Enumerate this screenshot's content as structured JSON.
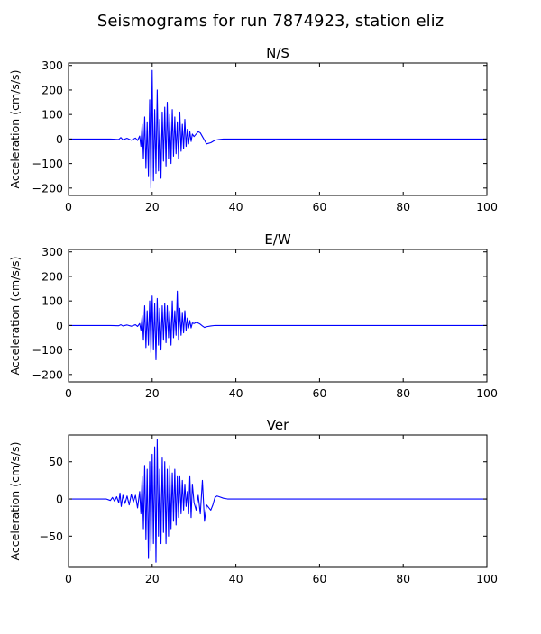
{
  "figure": {
    "title": "Seismograms for run 7874923, station eliz"
  },
  "style": {
    "line_color": "#0000ff",
    "axes_color": "#000000",
    "background": "#ffffff"
  },
  "chart_data": [
    {
      "type": "line",
      "title": "N/S",
      "xlabel": "",
      "ylabel": "Acceleration (cm/s/s)",
      "xlim": [
        0,
        100
      ],
      "ylim": [
        -230,
        310
      ],
      "xticks": [
        0,
        20,
        40,
        60,
        80,
        100
      ],
      "yticks": [
        -200,
        -100,
        0,
        100,
        200,
        300
      ],
      "grid": false,
      "series": [
        {
          "x": [
            0,
            10,
            12,
            12.5,
            13,
            14,
            15,
            16,
            16.5,
            17,
            17.3,
            17.6,
            17.9,
            18.2,
            18.5,
            18.8,
            19.1,
            19.4,
            19.7,
            20,
            20.3,
            20.6,
            20.9,
            21.2,
            21.5,
            21.8,
            22.1,
            22.4,
            22.7,
            23,
            23.3,
            23.6,
            23.9,
            24.2,
            24.5,
            24.8,
            25.1,
            25.4,
            25.7,
            26,
            26.3,
            26.6,
            26.9,
            27.2,
            27.5,
            27.8,
            28.1,
            28.4,
            28.7,
            29,
            29.3,
            29.6,
            30,
            30.5,
            31,
            31.5,
            32,
            32.5,
            33,
            34,
            35,
            36,
            37,
            38,
            40,
            50,
            60,
            70,
            80,
            90,
            100
          ],
          "y": [
            0,
            0,
            -2,
            6,
            -3,
            3,
            -5,
            4,
            -6,
            12,
            -30,
            60,
            -80,
            90,
            -120,
            70,
            -150,
            160,
            -200,
            280,
            -170,
            120,
            -140,
            200,
            -130,
            80,
            -160,
            110,
            -90,
            130,
            -110,
            150,
            -80,
            100,
            -100,
            120,
            -70,
            90,
            -60,
            70,
            -80,
            110,
            -50,
            60,
            -40,
            80,
            -30,
            40,
            -20,
            30,
            -10,
            20,
            10,
            20,
            30,
            25,
            10,
            -5,
            -20,
            -15,
            -5,
            -2,
            0,
            0,
            0,
            0,
            0,
            0,
            0,
            0,
            0
          ]
        }
      ]
    },
    {
      "type": "line",
      "title": "E/W",
      "xlabel": "",
      "ylabel": "Acceleration (cm/s/s)",
      "xlim": [
        0,
        100
      ],
      "ylim": [
        -230,
        310
      ],
      "xticks": [
        0,
        20,
        40,
        60,
        80,
        100
      ],
      "yticks": [
        -200,
        -100,
        0,
        100,
        200,
        300
      ],
      "grid": false,
      "series": [
        {
          "x": [
            0,
            10,
            12,
            12.5,
            13,
            14,
            15,
            16,
            16.5,
            17,
            17.3,
            17.6,
            17.9,
            18.2,
            18.5,
            18.8,
            19.1,
            19.4,
            19.7,
            20,
            20.3,
            20.6,
            20.9,
            21.2,
            21.5,
            21.8,
            22.1,
            22.4,
            22.7,
            23,
            23.3,
            23.6,
            23.9,
            24.2,
            24.5,
            24.8,
            25.1,
            25.4,
            25.7,
            26,
            26.3,
            26.6,
            26.9,
            27.2,
            27.5,
            27.8,
            28.1,
            28.4,
            28.7,
            29,
            29.3,
            29.6,
            30,
            30.5,
            31,
            31.5,
            32,
            32.5,
            33,
            34,
            35,
            36,
            38,
            40,
            50,
            60,
            70,
            80,
            90,
            100
          ],
          "y": [
            0,
            0,
            -1,
            3,
            -2,
            2,
            -3,
            3,
            -4,
            8,
            -20,
            40,
            -60,
            80,
            -90,
            60,
            -80,
            100,
            -110,
            120,
            -100,
            90,
            -140,
            110,
            -80,
            70,
            -100,
            80,
            -60,
            90,
            -70,
            80,
            -50,
            60,
            -80,
            100,
            -50,
            60,
            -40,
            140,
            -60,
            70,
            -40,
            50,
            -30,
            60,
            -20,
            30,
            -10,
            20,
            -10,
            10,
            8,
            12,
            10,
            5,
            -2,
            -8,
            -5,
            -2,
            0,
            0,
            0,
            0,
            0,
            0,
            0,
            0,
            0,
            0
          ]
        }
      ]
    },
    {
      "type": "line",
      "title": "Ver",
      "xlabel": "",
      "ylabel": "Acceleration (cm/s/s)",
      "xlim": [
        0,
        100
      ],
      "ylim": [
        -92,
        86
      ],
      "xticks": [
        0,
        20,
        40,
        60,
        80,
        100
      ],
      "yticks": [
        -50,
        0,
        50
      ],
      "grid": false,
      "series": [
        {
          "x": [
            0,
            9,
            10,
            10.5,
            11,
            11.5,
            12,
            12.3,
            12.6,
            13,
            13.5,
            14,
            14.5,
            15,
            15.5,
            16,
            16.5,
            17,
            17.3,
            17.6,
            17.9,
            18.2,
            18.5,
            18.8,
            19.1,
            19.4,
            19.7,
            20,
            20.3,
            20.6,
            20.9,
            21.2,
            21.5,
            21.8,
            22.1,
            22.4,
            22.7,
            23,
            23.3,
            23.6,
            23.9,
            24.2,
            24.5,
            24.8,
            25.1,
            25.4,
            25.7,
            26,
            26.3,
            26.6,
            26.9,
            27.2,
            27.5,
            27.8,
            28.1,
            28.4,
            28.7,
            29,
            29.3,
            29.6,
            30,
            30.5,
            31,
            31.5,
            32,
            32.5,
            33,
            34,
            34.5,
            35,
            35.5,
            36,
            37,
            38,
            40,
            45,
            50,
            60,
            70,
            80,
            90,
            100
          ],
          "y": [
            0,
            0,
            -2,
            2,
            -3,
            3,
            -5,
            8,
            -10,
            5,
            -6,
            4,
            -8,
            6,
            -4,
            5,
            -12,
            10,
            -20,
            30,
            -40,
            45,
            -55,
            40,
            -80,
            50,
            -70,
            60,
            -60,
            70,
            -85,
            80,
            -50,
            40,
            -60,
            55,
            -45,
            50,
            -60,
            40,
            -50,
            45,
            -40,
            35,
            -30,
            40,
            -35,
            30,
            -25,
            30,
            -20,
            25,
            -15,
            20,
            -10,
            10,
            -20,
            30,
            -25,
            20,
            -5,
            -15,
            5,
            -20,
            25,
            -30,
            -8,
            -15,
            -8,
            2,
            4,
            3,
            1,
            0,
            0,
            0,
            0,
            0,
            0,
            0,
            0,
            0
          ]
        }
      ]
    }
  ]
}
